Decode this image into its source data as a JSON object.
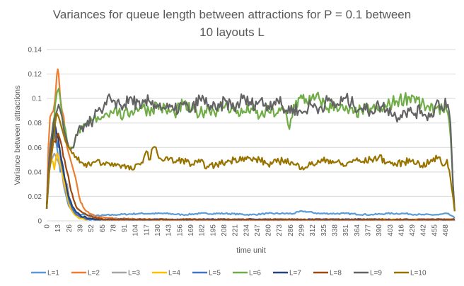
{
  "chart_data": {
    "type": "line",
    "title": [
      "Variances for queue length between attractions  for P = 0.1 between",
      "10 layouts L"
    ],
    "xlabel": "time unit",
    "ylabel": "Variance between attractions",
    "xlim": [
      0,
      480
    ],
    "ylim": [
      0,
      0.14
    ],
    "y_ticks": [
      "0",
      "0.02",
      "0.04",
      "0.06",
      "0.08",
      "0.1",
      "0.12",
      "0.14"
    ],
    "x_ticks": [
      "0",
      "13",
      "26",
      "39",
      "52",
      "65",
      "78",
      "91",
      "104",
      "117",
      "130",
      "143",
      "156",
      "169",
      "182",
      "195",
      "208",
      "221",
      "234",
      "247",
      "260",
      "273",
      "286",
      "299",
      "312",
      "325",
      "338",
      "351",
      "364",
      "377",
      "390",
      "403",
      "416",
      "429",
      "442",
      "455",
      "468"
    ],
    "grid": "horizontal",
    "legend_position": "bottom",
    "series": [
      {
        "name": "L=1",
        "color": "#5B9BD5",
        "x": [
          0,
          3,
          6,
          8,
          10,
          12,
          14,
          16,
          18,
          20,
          23,
          26,
          30,
          35,
          40,
          45,
          55,
          80,
          110,
          140,
          160,
          180,
          210,
          240,
          260,
          290,
          300,
          320,
          350,
          380,
          400,
          420,
          440,
          460,
          470,
          476,
          479
        ],
        "y": [
          0.01,
          0.04,
          0.06,
          0.065,
          0.07,
          0.06,
          0.05,
          0.04,
          0.045,
          0.03,
          0.02,
          0.012,
          0.008,
          0.006,
          0.005,
          0.005,
          0.004,
          0.005,
          0.006,
          0.006,
          0.005,
          0.006,
          0.006,
          0.005,
          0.006,
          0.006,
          0.008,
          0.006,
          0.006,
          0.005,
          0.006,
          0.006,
          0.005,
          0.005,
          0.006,
          0.004,
          0.002
        ]
      },
      {
        "name": "L=2",
        "color": "#ED7D31",
        "x": [
          0,
          2,
          4,
          6,
          8,
          10,
          12,
          13,
          14,
          16,
          18,
          20,
          22,
          24,
          26,
          28,
          30,
          32,
          34,
          36,
          38,
          40,
          44,
          50,
          60,
          80,
          120,
          200,
          300,
          400,
          470,
          479
        ],
        "y": [
          0.01,
          0.06,
          0.085,
          0.088,
          0.09,
          0.1,
          0.12,
          0.124,
          0.12,
          0.1,
          0.09,
          0.085,
          0.07,
          0.06,
          0.055,
          0.05,
          0.045,
          0.04,
          0.035,
          0.028,
          0.02,
          0.015,
          0.01,
          0.006,
          0.003,
          0.002,
          0.001,
          0.001,
          0.001,
          0.001,
          0.001,
          0.001
        ]
      },
      {
        "name": "L=3",
        "color": "#A5A5A5",
        "x": [
          0,
          3,
          6,
          9,
          12,
          15,
          18,
          21,
          24,
          27,
          30,
          35,
          40,
          50,
          60,
          100,
          200,
          300,
          400,
          479
        ],
        "y": [
          0.01,
          0.04,
          0.05,
          0.055,
          0.05,
          0.045,
          0.04,
          0.025,
          0.03,
          0.015,
          0.01,
          0.005,
          0.003,
          0.001,
          0.001,
          0.001,
          0.001,
          0.001,
          0.001,
          0.001
        ]
      },
      {
        "name": "L=4",
        "color": "#FFC000",
        "x": [
          0,
          3,
          6,
          9,
          12,
          15,
          18,
          21,
          24,
          27,
          30,
          35,
          40,
          50,
          60,
          100,
          200,
          300,
          400,
          479
        ],
        "y": [
          0.01,
          0.045,
          0.05,
          0.042,
          0.055,
          0.048,
          0.04,
          0.03,
          0.02,
          0.012,
          0.008,
          0.004,
          0.002,
          0.001,
          0.001,
          0.001,
          0.001,
          0.001,
          0.001,
          0.001
        ]
      },
      {
        "name": "L=5",
        "color": "#4472C4",
        "x": [
          0,
          3,
          6,
          9,
          12,
          15,
          18,
          21,
          24,
          27,
          30,
          35,
          40,
          50,
          60,
          100,
          200,
          300,
          400,
          479
        ],
        "y": [
          0.01,
          0.05,
          0.07,
          0.075,
          0.065,
          0.06,
          0.045,
          0.035,
          0.025,
          0.015,
          0.01,
          0.005,
          0.003,
          0.001,
          0.001,
          0.001,
          0.001,
          0.001,
          0.001,
          0.001
        ]
      },
      {
        "name": "L=6",
        "color": "#70AD47",
        "x": [
          0,
          3,
          6,
          9,
          10,
          12,
          14,
          16,
          18,
          20,
          22,
          24,
          26,
          28,
          30,
          33,
          36,
          39,
          42,
          46,
          50,
          55,
          60,
          65,
          70,
          75,
          80,
          90,
          100,
          110,
          120,
          130,
          140,
          150,
          160,
          170,
          180,
          190,
          200,
          210,
          220,
          230,
          240,
          250,
          260,
          270,
          280,
          285,
          290,
          300,
          310,
          320,
          330,
          340,
          350,
          360,
          370,
          380,
          390,
          400,
          410,
          420,
          430,
          440,
          450,
          460,
          465,
          468,
          471,
          474,
          477,
          479
        ],
        "y": [
          0.01,
          0.05,
          0.07,
          0.085,
          0.095,
          0.105,
          0.108,
          0.1,
          0.085,
          0.08,
          0.075,
          0.065,
          0.06,
          0.06,
          0.06,
          0.065,
          0.07,
          0.072,
          0.075,
          0.078,
          0.08,
          0.083,
          0.085,
          0.085,
          0.088,
          0.09,
          0.092,
          0.085,
          0.09,
          0.094,
          0.09,
          0.095,
          0.09,
          0.088,
          0.095,
          0.09,
          0.088,
          0.092,
          0.09,
          0.095,
          0.09,
          0.088,
          0.092,
          0.085,
          0.09,
          0.088,
          0.09,
          0.075,
          0.095,
          0.1,
          0.098,
          0.1,
          0.092,
          0.095,
          0.09,
          0.088,
          0.09,
          0.092,
          0.09,
          0.094,
          0.098,
          0.1,
          0.102,
          0.095,
          0.09,
          0.094,
          0.09,
          0.095,
          0.088,
          0.07,
          0.03,
          0.008
        ]
      },
      {
        "name": "L=7",
        "color": "#264478",
        "x": [
          0,
          3,
          6,
          9,
          12,
          15,
          18,
          21,
          24,
          27,
          30,
          35,
          40,
          50,
          60,
          100,
          200,
          300,
          400,
          479
        ],
        "y": [
          0.01,
          0.05,
          0.065,
          0.08,
          0.07,
          0.06,
          0.048,
          0.035,
          0.025,
          0.018,
          0.012,
          0.007,
          0.004,
          0.002,
          0.001,
          0.001,
          0.001,
          0.001,
          0.001,
          0.001
        ]
      },
      {
        "name": "L=8",
        "color": "#9E480E",
        "x": [
          0,
          3,
          6,
          9,
          12,
          15,
          18,
          21,
          24,
          27,
          30,
          33,
          36,
          40,
          45,
          50,
          60,
          70,
          80,
          100,
          150,
          200,
          250,
          300,
          350,
          400,
          450,
          479
        ],
        "y": [
          0.01,
          0.045,
          0.06,
          0.065,
          0.07,
          0.068,
          0.06,
          0.05,
          0.04,
          0.03,
          0.022,
          0.015,
          0.01,
          0.008,
          0.006,
          0.004,
          0.002,
          0.001,
          0.001,
          0.001,
          0.001,
          0.001,
          0.001,
          0.001,
          0.001,
          0.001,
          0.001,
          0.001
        ]
      },
      {
        "name": "L=9",
        "color": "#636363",
        "x": [
          0,
          3,
          6,
          8,
          10,
          12,
          14,
          16,
          18,
          20,
          22,
          24,
          26,
          28,
          30,
          33,
          36,
          40,
          44,
          48,
          52,
          56,
          60,
          65,
          70,
          75,
          80,
          90,
          100,
          110,
          120,
          130,
          140,
          150,
          160,
          170,
          180,
          190,
          200,
          210,
          220,
          230,
          240,
          250,
          260,
          270,
          280,
          290,
          300,
          310,
          320,
          330,
          340,
          350,
          360,
          370,
          380,
          390,
          400,
          410,
          420,
          430,
          440,
          450,
          460,
          465,
          468,
          471,
          474,
          477,
          479
        ],
        "y": [
          0.01,
          0.05,
          0.07,
          0.08,
          0.085,
          0.09,
          0.095,
          0.09,
          0.085,
          0.075,
          0.07,
          0.065,
          0.06,
          0.058,
          0.06,
          0.065,
          0.07,
          0.075,
          0.078,
          0.082,
          0.08,
          0.085,
          0.09,
          0.088,
          0.095,
          0.1,
          0.098,
          0.094,
          0.1,
          0.092,
          0.098,
          0.095,
          0.092,
          0.09,
          0.095,
          0.09,
          0.1,
          0.095,
          0.09,
          0.098,
          0.092,
          0.1,
          0.095,
          0.098,
          0.094,
          0.1,
          0.09,
          0.092,
          0.088,
          0.095,
          0.092,
          0.098,
          0.094,
          0.1,
          0.095,
          0.092,
          0.09,
          0.094,
          0.092,
          0.085,
          0.09,
          0.088,
          0.09,
          0.085,
          0.098,
          0.09,
          0.1,
          0.095,
          0.08,
          0.03,
          0.008
        ]
      },
      {
        "name": "L=10",
        "color": "#997300",
        "x": [
          0,
          3,
          6,
          8,
          10,
          12,
          14,
          16,
          18,
          20,
          22,
          24,
          26,
          28,
          30,
          33,
          36,
          40,
          44,
          48,
          52,
          56,
          60,
          65,
          70,
          75,
          80,
          90,
          100,
          110,
          117,
          120,
          125,
          130,
          135,
          140,
          150,
          160,
          170,
          180,
          190,
          200,
          210,
          220,
          230,
          240,
          250,
          260,
          270,
          280,
          290,
          300,
          310,
          320,
          330,
          340,
          350,
          360,
          370,
          380,
          390,
          400,
          410,
          420,
          430,
          440,
          450,
          460,
          465,
          470,
          474,
          477,
          479
        ],
        "y": [
          0.01,
          0.04,
          0.055,
          0.065,
          0.08,
          0.088,
          0.085,
          0.08,
          0.075,
          0.07,
          0.065,
          0.062,
          0.06,
          0.058,
          0.055,
          0.052,
          0.05,
          0.048,
          0.045,
          0.047,
          0.045,
          0.048,
          0.05,
          0.046,
          0.048,
          0.045,
          0.047,
          0.045,
          0.042,
          0.046,
          0.057,
          0.05,
          0.06,
          0.055,
          0.05,
          0.052,
          0.048,
          0.05,
          0.046,
          0.048,
          0.044,
          0.046,
          0.048,
          0.05,
          0.052,
          0.05,
          0.05,
          0.046,
          0.048,
          0.05,
          0.046,
          0.044,
          0.046,
          0.048,
          0.05,
          0.048,
          0.045,
          0.05,
          0.048,
          0.05,
          0.052,
          0.048,
          0.046,
          0.048,
          0.05,
          0.045,
          0.048,
          0.052,
          0.045,
          0.05,
          0.035,
          0.02,
          0.008
        ]
      }
    ]
  }
}
